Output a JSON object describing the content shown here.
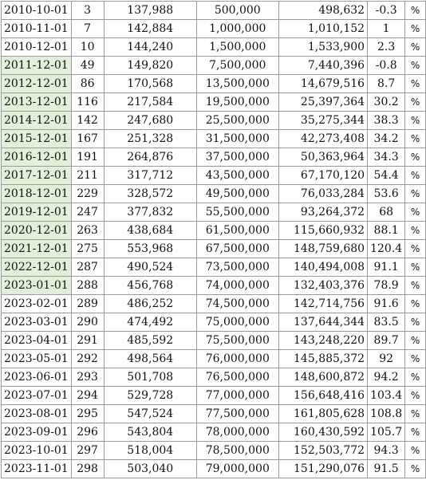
{
  "colors": {
    "highlight": "#e2efd9",
    "grid": "#9a9a9a",
    "text": "#111111"
  },
  "rows": [
    {
      "date": "2010-10-01",
      "n": "3",
      "a": "137,988",
      "b": "500,000",
      "c": "498,632",
      "pct": "-0.3",
      "unit": "%",
      "hl": false
    },
    {
      "date": "2010-11-01",
      "n": "7",
      "a": "142,884",
      "b": "1,000,000",
      "c": "1,010,152",
      "pct": "1",
      "unit": "%",
      "hl": false
    },
    {
      "date": "2010-12-01",
      "n": "10",
      "a": "144,240",
      "b": "1,500,000",
      "c": "1,533,900",
      "pct": "2.3",
      "unit": "%",
      "hl": false
    },
    {
      "date": "2011-12-01",
      "n": "49",
      "a": "149,820",
      "b": "7,500,000",
      "c": "7,440,396",
      "pct": "-0.8",
      "unit": "%",
      "hl": true
    },
    {
      "date": "2012-12-01",
      "n": "86",
      "a": "170,568",
      "b": "13,500,000",
      "c": "14,679,516",
      "pct": "8.7",
      "unit": "%",
      "hl": true
    },
    {
      "date": "2013-12-01",
      "n": "116",
      "a": "217,584",
      "b": "19,500,000",
      "c": "25,397,364",
      "pct": "30.2",
      "unit": "%",
      "hl": true
    },
    {
      "date": "2014-12-01",
      "n": "142",
      "a": "247,680",
      "b": "25,500,000",
      "c": "35,275,344",
      "pct": "38.3",
      "unit": "%",
      "hl": true
    },
    {
      "date": "2015-12-01",
      "n": "167",
      "a": "251,328",
      "b": "31,500,000",
      "c": "42,273,408",
      "pct": "34.2",
      "unit": "%",
      "hl": true
    },
    {
      "date": "2016-12-01",
      "n": "191",
      "a": "264,876",
      "b": "37,500,000",
      "c": "50,363,964",
      "pct": "34.3",
      "unit": "%",
      "hl": true
    },
    {
      "date": "2017-12-01",
      "n": "211",
      "a": "317,712",
      "b": "43,500,000",
      "c": "67,170,120",
      "pct": "54.4",
      "unit": "%",
      "hl": true
    },
    {
      "date": "2018-12-01",
      "n": "229",
      "a": "328,572",
      "b": "49,500,000",
      "c": "76,033,284",
      "pct": "53.6",
      "unit": "%",
      "hl": true
    },
    {
      "date": "2019-12-01",
      "n": "247",
      "a": "377,832",
      "b": "55,500,000",
      "c": "93,264,372",
      "pct": "68",
      "unit": "%",
      "hl": true
    },
    {
      "date": "2020-12-01",
      "n": "263",
      "a": "438,684",
      "b": "61,500,000",
      "c": "115,660,932",
      "pct": "88.1",
      "unit": "%",
      "hl": true
    },
    {
      "date": "2021-12-01",
      "n": "275",
      "a": "553,968",
      "b": "67,500,000",
      "c": "148,759,680",
      "pct": "120.4",
      "unit": "%",
      "hl": true
    },
    {
      "date": "2022-12-01",
      "n": "287",
      "a": "490,524",
      "b": "73,500,000",
      "c": "140,494,008",
      "pct": "91.1",
      "unit": "%",
      "hl": true
    },
    {
      "date": "2023-01-01",
      "n": "288",
      "a": "456,768",
      "b": "74,000,000",
      "c": "132,403,376",
      "pct": "78.9",
      "unit": "%",
      "hl": true
    },
    {
      "date": "2023-02-01",
      "n": "289",
      "a": "486,252",
      "b": "74,500,000",
      "c": "142,714,756",
      "pct": "91.6",
      "unit": "%",
      "hl": false
    },
    {
      "date": "2023-03-01",
      "n": "290",
      "a": "474,492",
      "b": "75,000,000",
      "c": "137,644,344",
      "pct": "83.5",
      "unit": "%",
      "hl": false
    },
    {
      "date": "2023-04-01",
      "n": "291",
      "a": "485,592",
      "b": "75,500,000",
      "c": "143,248,220",
      "pct": "89.7",
      "unit": "%",
      "hl": false
    },
    {
      "date": "2023-05-01",
      "n": "292",
      "a": "498,564",
      "b": "76,000,000",
      "c": "145,885,372",
      "pct": "92",
      "unit": "%",
      "hl": false
    },
    {
      "date": "2023-06-01",
      "n": "293",
      "a": "501,708",
      "b": "76,500,000",
      "c": "148,600,872",
      "pct": "94.2",
      "unit": "%",
      "hl": false
    },
    {
      "date": "2023-07-01",
      "n": "294",
      "a": "529,728",
      "b": "77,000,000",
      "c": "156,648,416",
      "pct": "103.4",
      "unit": "%",
      "hl": false
    },
    {
      "date": "2023-08-01",
      "n": "295",
      "a": "547,524",
      "b": "77,500,000",
      "c": "161,805,628",
      "pct": "108.8",
      "unit": "%",
      "hl": false
    },
    {
      "date": "2023-09-01",
      "n": "296",
      "a": "543,804",
      "b": "78,000,000",
      "c": "160,430,592",
      "pct": "105.7",
      "unit": "%",
      "hl": false
    },
    {
      "date": "2023-10-01",
      "n": "297",
      "a": "518,004",
      "b": "78,500,000",
      "c": "152,503,772",
      "pct": "94.3",
      "unit": "%",
      "hl": false
    },
    {
      "date": "2023-11-01",
      "n": "298",
      "a": "503,040",
      "b": "79,000,000",
      "c": "151,290,076",
      "pct": "91.5",
      "unit": "%",
      "hl": false
    }
  ]
}
